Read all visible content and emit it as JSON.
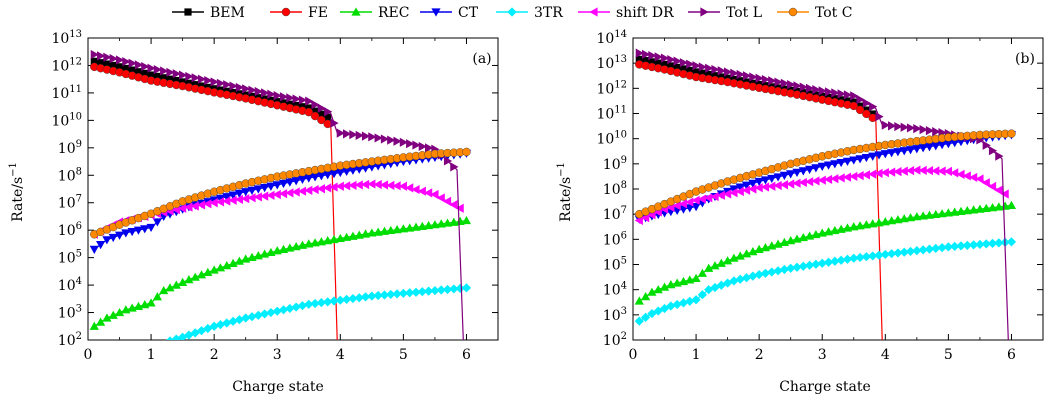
{
  "legend": {
    "placement": "top-center",
    "entries": [
      {
        "label": "BEM",
        "color": "#000000",
        "marker": "square"
      },
      {
        "label": "FE",
        "color": "#ff0000",
        "marker": "circle"
      },
      {
        "label": "REC",
        "color": "#00dd00",
        "marker": "triangle-up"
      },
      {
        "label": "CT",
        "color": "#0000ee",
        "marker": "triangle-down"
      },
      {
        "label": "3TR",
        "color": "#00eeff",
        "marker": "diamond"
      },
      {
        "label": "shift DR",
        "color": "#ff00ff",
        "marker": "triangle-left"
      },
      {
        "label": "Tot L",
        "color": "#800080",
        "marker": "triangle-right"
      },
      {
        "label": "Tot C",
        "color": "#ff8800",
        "marker": "circle"
      }
    ]
  },
  "chart_data": [
    {
      "type": "line",
      "panel_label": "(a)",
      "xlabel": "Charge state",
      "ylabel": "Rate/s",
      "ylabel_exponent": "−1",
      "xlim": [
        0,
        6.5
      ],
      "xticks": [
        0,
        1,
        2,
        3,
        4,
        5,
        6
      ],
      "yscale": "log",
      "ylim_exp": [
        2,
        13
      ],
      "yticks_exp": [
        2,
        3,
        4,
        5,
        6,
        7,
        8,
        9,
        10,
        11,
        12,
        13
      ],
      "grid": false,
      "series": [
        {
          "name": "BEM",
          "log10_values": [
            [
              0.1,
              12.15
            ],
            [
              0.5,
              11.95
            ],
            [
              1.0,
              11.65
            ],
            [
              1.5,
              11.4
            ],
            [
              2.0,
              11.15
            ],
            [
              2.5,
              10.92
            ],
            [
              3.0,
              10.68
            ],
            [
              3.5,
              10.45
            ],
            [
              3.85,
              10.05
            ]
          ]
        },
        {
          "name": "FE",
          "log10_values": [
            [
              0.1,
              11.95
            ],
            [
              0.5,
              11.75
            ],
            [
              1.0,
              11.45
            ],
            [
              1.5,
              11.25
            ],
            [
              2.0,
              11.02
            ],
            [
              2.5,
              10.8
            ],
            [
              3.0,
              10.55
            ],
            [
              3.5,
              10.3
            ],
            [
              3.85,
              9.8
            ],
            [
              3.95,
              2.0
            ]
          ]
        },
        {
          "name": "REC",
          "log10_values": [
            [
              0.1,
              2.5
            ],
            [
              0.3,
              2.8
            ],
            [
              0.6,
              3.1
            ],
            [
              1.0,
              3.35
            ],
            [
              1.2,
              3.8
            ],
            [
              1.6,
              4.2
            ],
            [
              2.0,
              4.55
            ],
            [
              2.5,
              4.95
            ],
            [
              3.0,
              5.25
            ],
            [
              3.5,
              5.5
            ],
            [
              4.0,
              5.7
            ],
            [
              4.5,
              5.9
            ],
            [
              5.0,
              6.05
            ],
            [
              5.5,
              6.2
            ],
            [
              6.0,
              6.35
            ]
          ]
        },
        {
          "name": "CT",
          "log10_values": [
            [
              0.1,
              5.3
            ],
            [
              0.3,
              5.65
            ],
            [
              0.6,
              5.9
            ],
            [
              1.0,
              6.1
            ],
            [
              1.2,
              6.5
            ],
            [
              1.6,
              6.85
            ],
            [
              2.0,
              7.1
            ],
            [
              2.5,
              7.4
            ],
            [
              3.0,
              7.65
            ],
            [
              3.5,
              7.9
            ],
            [
              4.0,
              8.1
            ],
            [
              4.5,
              8.3
            ],
            [
              5.0,
              8.5
            ],
            [
              5.5,
              8.65
            ],
            [
              6.0,
              8.8
            ]
          ]
        },
        {
          "name": "3TR",
          "log10_values": [
            [
              1.2,
              1.9
            ],
            [
              1.5,
              2.1
            ],
            [
              2.0,
              2.5
            ],
            [
              2.5,
              2.8
            ],
            [
              3.0,
              3.05
            ],
            [
              3.5,
              3.3
            ],
            [
              4.0,
              3.45
            ],
            [
              4.5,
              3.6
            ],
            [
              5.0,
              3.7
            ],
            [
              5.5,
              3.8
            ],
            [
              6.0,
              3.9
            ]
          ]
        },
        {
          "name": "shift DR",
          "log10_values": [
            [
              0.1,
              5.85
            ],
            [
              0.5,
              6.3
            ],
            [
              1.0,
              6.55
            ],
            [
              1.5,
              6.8
            ],
            [
              2.0,
              7.0
            ],
            [
              2.5,
              7.15
            ],
            [
              3.0,
              7.3
            ],
            [
              3.5,
              7.45
            ],
            [
              4.0,
              7.6
            ],
            [
              4.5,
              7.68
            ],
            [
              5.0,
              7.6
            ],
            [
              5.5,
              7.3
            ],
            [
              5.9,
              6.8
            ]
          ]
        },
        {
          "name": "Tot L",
          "log10_values": [
            [
              0.1,
              12.4
            ],
            [
              0.5,
              12.2
            ],
            [
              1.0,
              11.9
            ],
            [
              1.5,
              11.65
            ],
            [
              2.0,
              11.4
            ],
            [
              2.5,
              11.15
            ],
            [
              3.0,
              10.9
            ],
            [
              3.5,
              10.7
            ],
            [
              3.85,
              10.25
            ],
            [
              3.95,
              9.55
            ],
            [
              4.5,
              9.4
            ],
            [
              5.0,
              9.2
            ],
            [
              5.5,
              8.95
            ],
            [
              5.85,
              8.2
            ],
            [
              5.95,
              2.0
            ]
          ]
        },
        {
          "name": "Tot C",
          "log10_values": [
            [
              0.1,
              5.85
            ],
            [
              0.5,
              6.2
            ],
            [
              1.0,
              6.6
            ],
            [
              1.5,
              7.05
            ],
            [
              2.0,
              7.4
            ],
            [
              2.5,
              7.7
            ],
            [
              3.0,
              7.95
            ],
            [
              3.5,
              8.15
            ],
            [
              4.0,
              8.35
            ],
            [
              4.5,
              8.5
            ],
            [
              5.0,
              8.65
            ],
            [
              5.5,
              8.78
            ],
            [
              6.0,
              8.85
            ]
          ]
        }
      ]
    },
    {
      "type": "line",
      "panel_label": "(b)",
      "xlabel": "Charge state",
      "ylabel": "Rate/s",
      "ylabel_exponent": "−1",
      "xlim": [
        0,
        6.5
      ],
      "xticks": [
        0,
        1,
        2,
        3,
        4,
        5,
        6
      ],
      "yscale": "log",
      "ylim_exp": [
        2,
        14
      ],
      "yticks_exp": [
        2,
        3,
        4,
        5,
        6,
        7,
        8,
        9,
        10,
        11,
        12,
        13,
        14
      ],
      "grid": false,
      "series": [
        {
          "name": "BEM",
          "log10_values": [
            [
              0.1,
              13.15
            ],
            [
              0.5,
              12.95
            ],
            [
              1.0,
              12.65
            ],
            [
              1.5,
              12.4
            ],
            [
              2.0,
              12.15
            ],
            [
              2.5,
              11.92
            ],
            [
              3.0,
              11.68
            ],
            [
              3.5,
              11.45
            ],
            [
              3.85,
              10.9
            ]
          ]
        },
        {
          "name": "FE",
          "log10_values": [
            [
              0.1,
              12.95
            ],
            [
              0.5,
              12.75
            ],
            [
              1.0,
              12.45
            ],
            [
              1.5,
              12.25
            ],
            [
              2.0,
              12.02
            ],
            [
              2.5,
              11.8
            ],
            [
              3.0,
              11.55
            ],
            [
              3.5,
              11.3
            ],
            [
              3.85,
              10.75
            ],
            [
              3.95,
              2.0
            ]
          ]
        },
        {
          "name": "REC",
          "log10_values": [
            [
              0.1,
              3.55
            ],
            [
              0.3,
              3.9
            ],
            [
              0.6,
              4.2
            ],
            [
              1.0,
              4.45
            ],
            [
              1.2,
              4.85
            ],
            [
              1.6,
              5.25
            ],
            [
              2.0,
              5.6
            ],
            [
              2.5,
              5.95
            ],
            [
              3.0,
              6.25
            ],
            [
              3.5,
              6.5
            ],
            [
              4.0,
              6.7
            ],
            [
              4.5,
              6.9
            ],
            [
              5.0,
              7.05
            ],
            [
              5.5,
              7.2
            ],
            [
              6.0,
              7.35
            ]
          ]
        },
        {
          "name": "CT",
          "log10_values": [
            [
              0.1,
              6.8
            ],
            [
              0.5,
              7.05
            ],
            [
              1.0,
              7.3
            ],
            [
              1.2,
              7.6
            ],
            [
              1.6,
              8.0
            ],
            [
              2.0,
              8.3
            ],
            [
              2.5,
              8.6
            ],
            [
              3.0,
              8.9
            ],
            [
              3.5,
              9.15
            ],
            [
              4.0,
              9.4
            ],
            [
              4.5,
              9.6
            ],
            [
              5.0,
              9.8
            ],
            [
              5.5,
              10.0
            ],
            [
              6.0,
              10.15
            ]
          ]
        },
        {
          "name": "3TR",
          "log10_values": [
            [
              0.1,
              2.75
            ],
            [
              0.3,
              3.05
            ],
            [
              0.6,
              3.35
            ],
            [
              1.0,
              3.6
            ],
            [
              1.2,
              4.0
            ],
            [
              1.6,
              4.35
            ],
            [
              2.0,
              4.6
            ],
            [
              2.5,
              4.85
            ],
            [
              3.0,
              5.05
            ],
            [
              3.5,
              5.25
            ],
            [
              4.0,
              5.4
            ],
            [
              4.5,
              5.55
            ],
            [
              5.0,
              5.7
            ],
            [
              5.5,
              5.8
            ],
            [
              6.0,
              5.9
            ]
          ]
        },
        {
          "name": "shift DR",
          "log10_values": [
            [
              0.1,
              6.75
            ],
            [
              0.5,
              7.2
            ],
            [
              1.0,
              7.55
            ],
            [
              1.5,
              7.8
            ],
            [
              2.0,
              8.05
            ],
            [
              2.5,
              8.2
            ],
            [
              3.0,
              8.35
            ],
            [
              3.5,
              8.5
            ],
            [
              4.0,
              8.65
            ],
            [
              4.5,
              8.75
            ],
            [
              5.0,
              8.7
            ],
            [
              5.5,
              8.4
            ],
            [
              5.9,
              7.8
            ]
          ]
        },
        {
          "name": "Tot L",
          "log10_values": [
            [
              0.1,
              13.4
            ],
            [
              0.5,
              13.2
            ],
            [
              1.0,
              12.9
            ],
            [
              1.5,
              12.65
            ],
            [
              2.0,
              12.4
            ],
            [
              2.5,
              12.15
            ],
            [
              3.0,
              11.9
            ],
            [
              3.5,
              11.7
            ],
            [
              3.85,
              11.2
            ],
            [
              3.95,
              10.55
            ],
            [
              4.5,
              10.4
            ],
            [
              5.0,
              10.2
            ],
            [
              5.5,
              9.95
            ],
            [
              5.85,
              9.2
            ],
            [
              5.95,
              2.0
            ]
          ]
        },
        {
          "name": "Tot C",
          "log10_values": [
            [
              0.1,
              7.0
            ],
            [
              0.5,
              7.4
            ],
            [
              1.0,
              7.9
            ],
            [
              1.5,
              8.3
            ],
            [
              2.0,
              8.65
            ],
            [
              2.5,
              9.0
            ],
            [
              3.0,
              9.3
            ],
            [
              3.5,
              9.55
            ],
            [
              4.0,
              9.75
            ],
            [
              4.5,
              9.9
            ],
            [
              5.0,
              10.05
            ],
            [
              5.5,
              10.15
            ],
            [
              6.0,
              10.2
            ]
          ]
        }
      ]
    }
  ]
}
